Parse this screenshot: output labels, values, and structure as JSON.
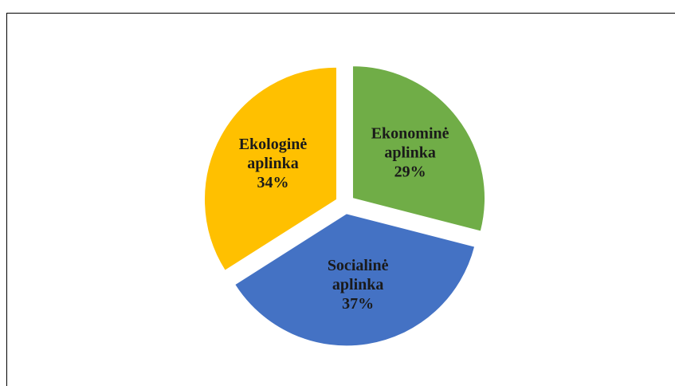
{
  "chart_data": {
    "type": "pie",
    "categories": [
      "Ekonominė aplinka",
      "Socialinė aplinka",
      "Ekologinė aplinka"
    ],
    "values": [
      29,
      37,
      34
    ],
    "value_labels": [
      "29%",
      "37%",
      "34%"
    ],
    "colors": [
      "#70ad47",
      "#4472c4",
      "#ffc000"
    ],
    "exploded": true
  }
}
